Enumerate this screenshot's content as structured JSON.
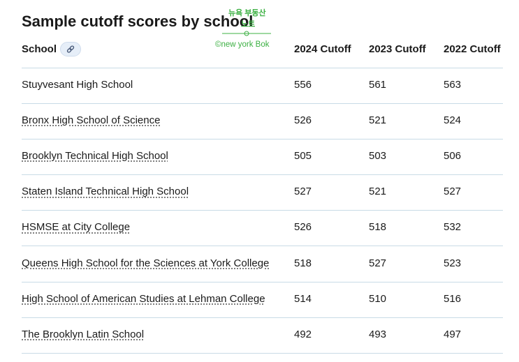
{
  "title": "Sample cutoff scores by school",
  "watermark": [
    "뉴욕 부동산",
    "노트",
    "©new york Bok"
  ],
  "table": {
    "headers": [
      "School",
      "2024 Cutoff",
      "2023 Cutoff",
      "2022 Cutoff"
    ],
    "rows": [
      {
        "link": false,
        "cells": [
          "Stuyvesant High School",
          556,
          561,
          563
        ]
      },
      {
        "link": true,
        "cells": [
          "Bronx High School of Science",
          526,
          521,
          524
        ]
      },
      {
        "link": true,
        "cells": [
          "Brooklyn Technical High School",
          505,
          503,
          506
        ]
      },
      {
        "link": true,
        "cells": [
          "Staten Island Technical High School",
          527,
          521,
          527
        ]
      },
      {
        "link": true,
        "cells": [
          "HSMSE at City College",
          526,
          518,
          532
        ]
      },
      {
        "link": true,
        "cells": [
          "Queens High School for the Sciences at York College",
          518,
          527,
          523
        ]
      },
      {
        "link": true,
        "cells": [
          "High School of American Studies at Lehman College",
          514,
          510,
          516
        ]
      },
      {
        "link": true,
        "cells": [
          "The Brooklyn Latin School",
          492,
          493,
          497
        ]
      }
    ]
  }
}
